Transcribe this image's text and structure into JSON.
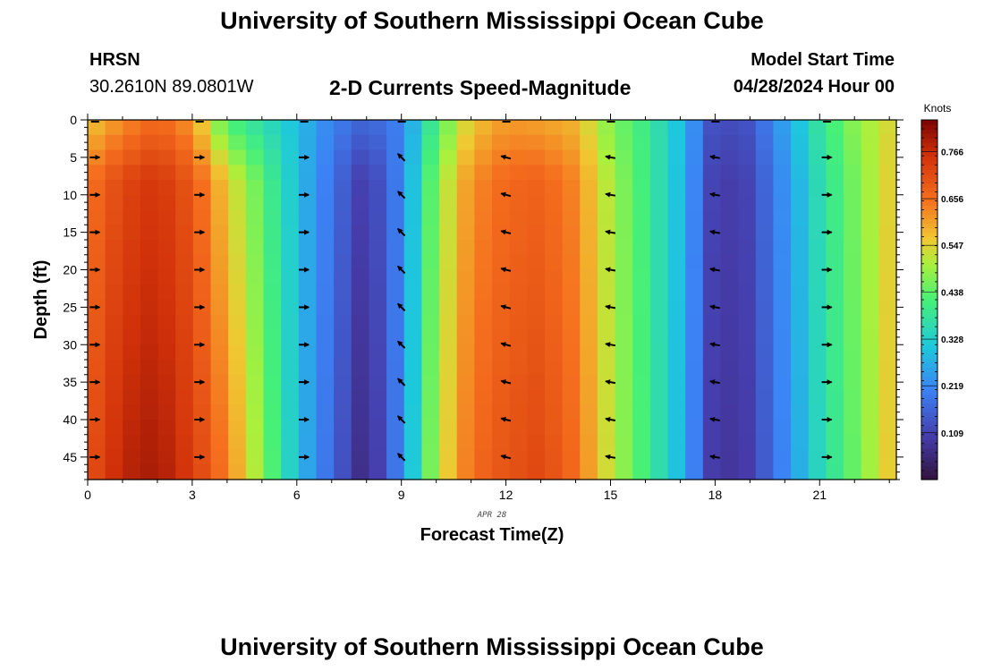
{
  "header": {
    "title": "University of Southern Mississippi Ocean Cube",
    "station": "HRSN",
    "coordinates": "30.2610N  89.0801W",
    "plot_title": "2-D Currents Speed-Magnitude",
    "model_label": "Model Start Time",
    "model_time": "04/28/2024 Hour 00",
    "footer_title": "University of Southern Mississippi Ocean Cube"
  },
  "chart_data": {
    "type": "heatmap",
    "title": "2-D Currents Speed-Magnitude",
    "xlabel": "Forecast Time(Z)",
    "ylabel": "Depth (ft)",
    "date_label": "APR 28",
    "xlim": [
      0,
      23.2
    ],
    "ylim": [
      0,
      48
    ],
    "x_ticks": [
      0,
      3,
      6,
      9,
      12,
      15,
      18,
      21
    ],
    "y_ticks": [
      0,
      5,
      10,
      15,
      20,
      25,
      30,
      35,
      40,
      45
    ],
    "hours": [
      0,
      1,
      2,
      3,
      4,
      5,
      6,
      7,
      8,
      9,
      10,
      11,
      12,
      13,
      14,
      15,
      16,
      17,
      18,
      19,
      20,
      21,
      22,
      23
    ],
    "surface_speed": [
      0.56,
      0.62,
      0.67,
      0.61,
      0.42,
      0.36,
      0.3,
      0.21,
      0.16,
      0.21,
      0.42,
      0.56,
      0.61,
      0.6,
      0.58,
      0.47,
      0.4,
      0.3,
      0.12,
      0.14,
      0.26,
      0.38,
      0.48,
      0.54
    ],
    "bottom_speed": [
      0.7,
      0.78,
      0.8,
      0.74,
      0.64,
      0.48,
      0.3,
      0.17,
      0.05,
      0.22,
      0.51,
      0.66,
      0.7,
      0.72,
      0.66,
      0.52,
      0.41,
      0.29,
      0.08,
      0.1,
      0.22,
      0.35,
      0.45,
      0.56
    ],
    "vector_hours": [
      0.2,
      3.2,
      6.2,
      9.0,
      12.0,
      15.0,
      18.0,
      21.2
    ],
    "vector_depths": [
      5,
      10,
      15,
      20,
      25,
      30,
      35,
      40,
      45
    ],
    "vector_direction_deg": [
      0,
      0,
      0,
      225,
      195,
      190,
      190,
      0
    ],
    "colorbar": {
      "label": "Knots",
      "min": 0.0,
      "max": 0.84,
      "ticks": [
        "0.109",
        "0.219",
        "0.328",
        "0.438",
        "0.547",
        "0.656",
        "0.766"
      ]
    }
  }
}
